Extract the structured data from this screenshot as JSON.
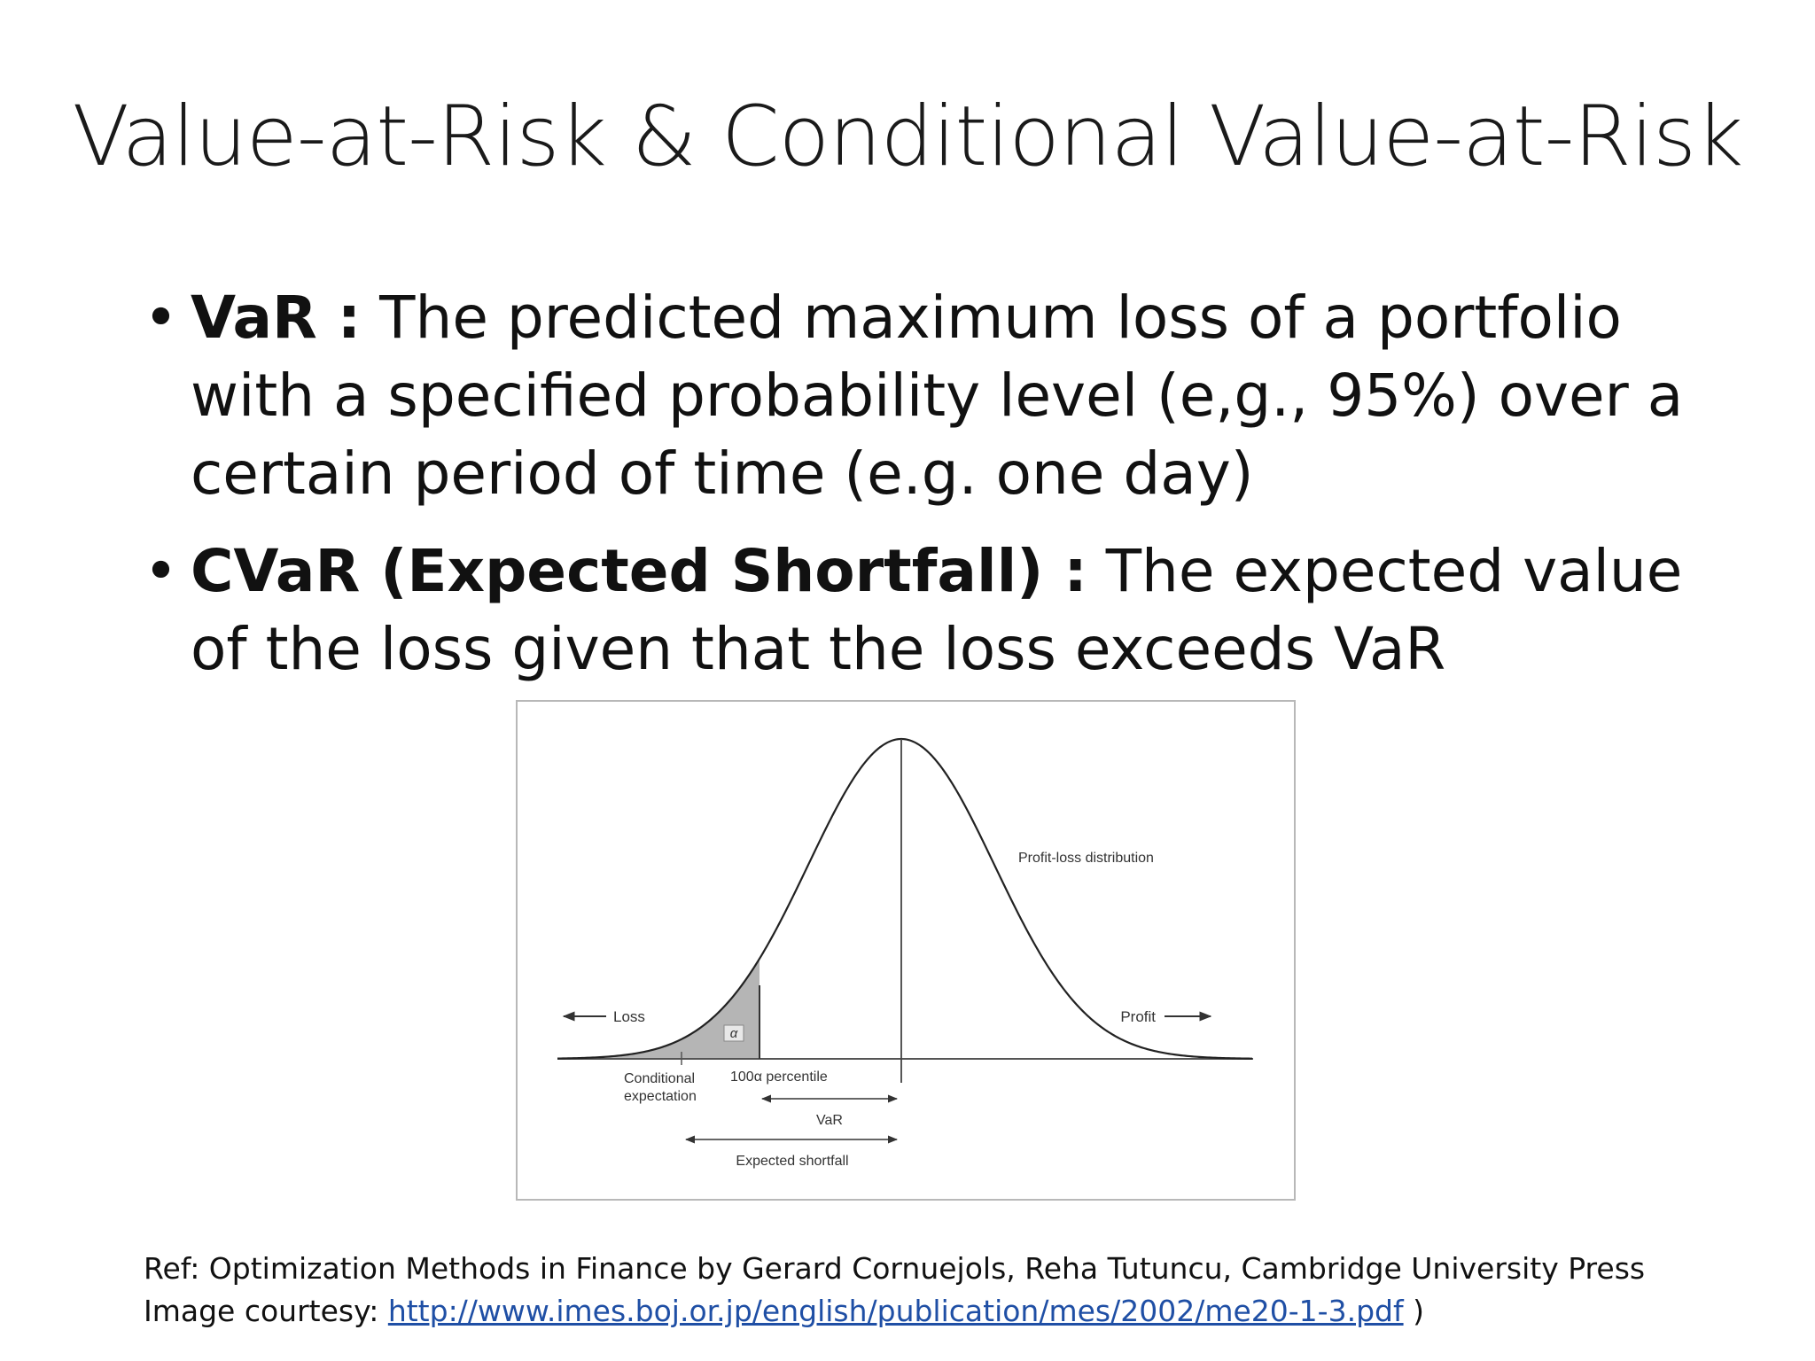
{
  "slide": {
    "title": "Value-at-Risk & Conditional Value-at-Risk",
    "bullets": [
      {
        "bold": "VaR :",
        "text": " The predicted maximum loss of a portfolio with a specified probability level (e,g., 95%) over a certain period of time (e.g. one day)"
      },
      {
        "bold": "CVaR (Expected Shortfall) :",
        "text": " The expected value of the loss given that the loss exceeds VaR"
      }
    ]
  },
  "figure": {
    "curve_label": "Profit-loss distribution",
    "loss_label": "Loss",
    "profit_label": "Profit",
    "alpha_label": "α",
    "conditional_label_1": "Conditional",
    "conditional_label_2": "expectation",
    "percentile_label": "100α percentile",
    "var_label": "VaR",
    "shortfall_label": "Expected shortfall"
  },
  "refs": {
    "line1": "Ref: Optimization Methods in Finance by Gerard Cornuejols, Reha Tutuncu, Cambridge University Press",
    "line2_prefix": "Image courtesy: ",
    "link_text": "http://www.imes.boj.or.jp/english/publication/mes/2002/me20-1-3.pdf",
    "line2_suffix": " )"
  }
}
